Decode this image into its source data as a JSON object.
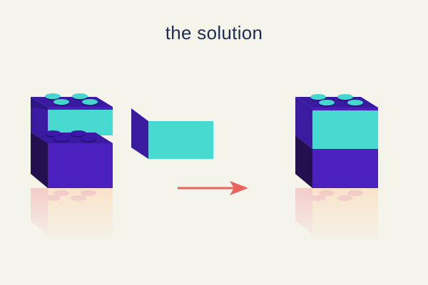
{
  "title": "the solution",
  "colors": {
    "background": "#f5f4ea",
    "title_text": "#1f2b52",
    "block_purple_front": "#4b20be",
    "block_purple_top": "#3a1aa0",
    "block_purple_side": "#23104f",
    "block_teal_front": "#48d9d1",
    "block_teal_side": "#3a1a9e",
    "stud_teal": "#45d6cf",
    "stud_purple": "#3b18a8",
    "arrow": "#e8645c",
    "reflection_peach": "#f8e1c6",
    "reflection_pink": "#f3c8c6"
  },
  "icons": {
    "left": "stacked-brick-with-missing-piece-icon",
    "loose": "loose-teal-brick-piece-icon",
    "arrow": "right-arrow-icon",
    "right": "completed-brick-stack-icon"
  }
}
